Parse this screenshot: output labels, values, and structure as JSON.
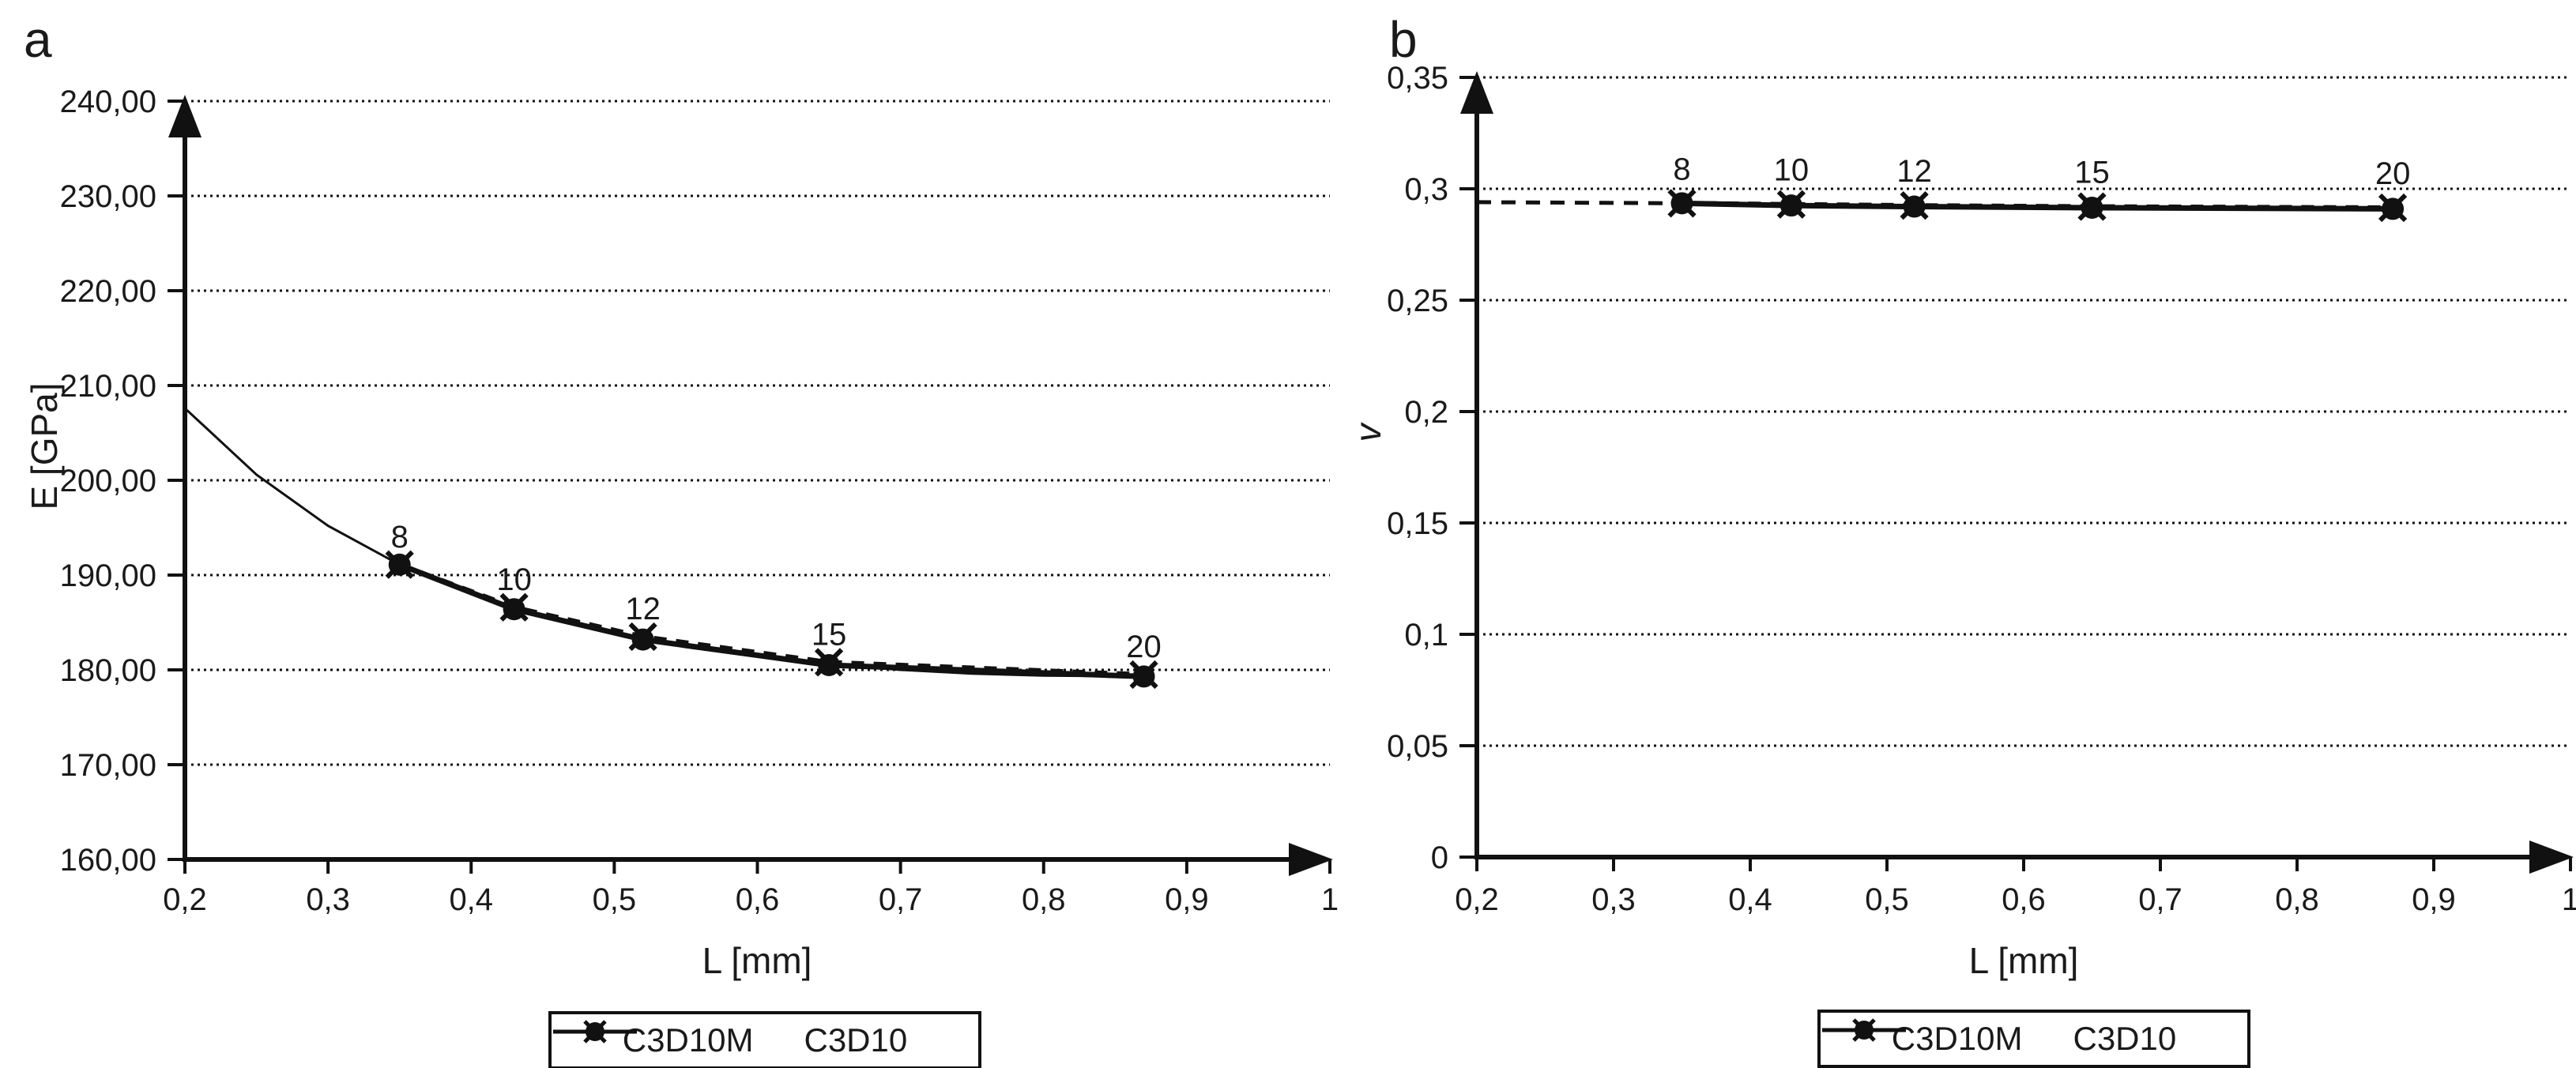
{
  "colors": {
    "ink": "#1a1a1a",
    "line": "#111111",
    "background": "#ffffff"
  },
  "legend": {
    "items": [
      {
        "label": "C3D10M",
        "line": "dashed",
        "marker": "x"
      },
      {
        "label": "C3D10",
        "line": "solid",
        "marker": "circle"
      }
    ]
  },
  "chart_data": [
    {
      "type": "line",
      "panel_label": "a",
      "xlabel": "L [mm]",
      "ylabel": "E [GPa]",
      "xlim": [
        0.2,
        1.0
      ],
      "ylim": [
        160,
        240
      ],
      "grid": "horizontal-dotted",
      "legend_position": "bottom",
      "x_tick_values": [
        0.2,
        0.3,
        0.4,
        0.5,
        0.6,
        0.7,
        0.8,
        0.9,
        1.0
      ],
      "x_tick_labels": [
        "0,2",
        "0,3",
        "0,4",
        "0,5",
        "0,6",
        "0,7",
        "0,8",
        "0,9",
        "1"
      ],
      "y_tick_values": [
        240,
        230,
        220,
        210,
        200,
        190,
        180,
        170,
        160
      ],
      "y_tick_labels": [
        "240,00",
        "230,00",
        "220,00",
        "210,00",
        "200,00",
        "190,00",
        "180,00",
        "170,00",
        "160,00"
      ],
      "x": [
        0.35,
        0.43,
        0.52,
        0.65,
        0.87
      ],
      "point_labels": [
        "8",
        "10",
        "12",
        "15",
        "20"
      ],
      "series": [
        {
          "name": "C3D10M",
          "line": "dashed",
          "marker": "x",
          "values": [
            191.1,
            186.6,
            183.5,
            180.8,
            179.5
          ]
        },
        {
          "name": "C3D10",
          "line": "solid",
          "marker": "circle",
          "values": [
            191.1,
            186.4,
            183.2,
            180.5,
            179.3
          ]
        }
      ],
      "fit_curve": {
        "line": "solid",
        "x": [
          0.2,
          0.25,
          0.3,
          0.35,
          0.4,
          0.45,
          0.5,
          0.55,
          0.6,
          0.65,
          0.7,
          0.75,
          0.8,
          0.87
        ],
        "y": [
          207.6,
          200.6,
          195.2,
          191.1,
          188.0,
          185.6,
          183.8,
          182.4,
          181.4,
          180.6,
          180.0,
          179.6,
          179.4,
          179.3
        ]
      }
    },
    {
      "type": "line",
      "panel_label": "b",
      "xlabel": "L [mm]",
      "ylabel": "v",
      "ylabel_style": "italic",
      "xlim": [
        0.2,
        1.0
      ],
      "ylim": [
        0,
        0.35
      ],
      "grid": "horizontal-dotted",
      "legend_position": "bottom",
      "x_tick_values": [
        0.2,
        0.3,
        0.4,
        0.5,
        0.6,
        0.7,
        0.8,
        0.9,
        1.0
      ],
      "x_tick_labels": [
        "0,2",
        "0,3",
        "0,4",
        "0,5",
        "0,6",
        "0,7",
        "0,8",
        "0,9",
        "1"
      ],
      "y_tick_values": [
        0.35,
        0.3,
        0.25,
        0.2,
        0.15,
        0.1,
        0.05,
        0
      ],
      "y_tick_labels": [
        "0,35",
        "0,3",
        "0,25",
        "0,2",
        "0,15",
        "0,1",
        "0,05",
        "0"
      ],
      "x": [
        0.35,
        0.43,
        0.52,
        0.65,
        0.87
      ],
      "point_labels": [
        "8",
        "10",
        "12",
        "15",
        "20"
      ],
      "series": [
        {
          "name": "C3D10M",
          "line": "dashed",
          "marker": "x",
          "values": [
            0.2935,
            0.293,
            0.2925,
            0.292,
            0.2915
          ]
        },
        {
          "name": "C3D10",
          "line": "solid",
          "marker": "circle",
          "values": [
            0.2935,
            0.2925,
            0.292,
            0.2915,
            0.291
          ]
        }
      ],
      "fit_curve": {
        "line": "dashed",
        "x": [
          0.2,
          0.35
        ],
        "y": [
          0.294,
          0.2935
        ]
      }
    }
  ]
}
